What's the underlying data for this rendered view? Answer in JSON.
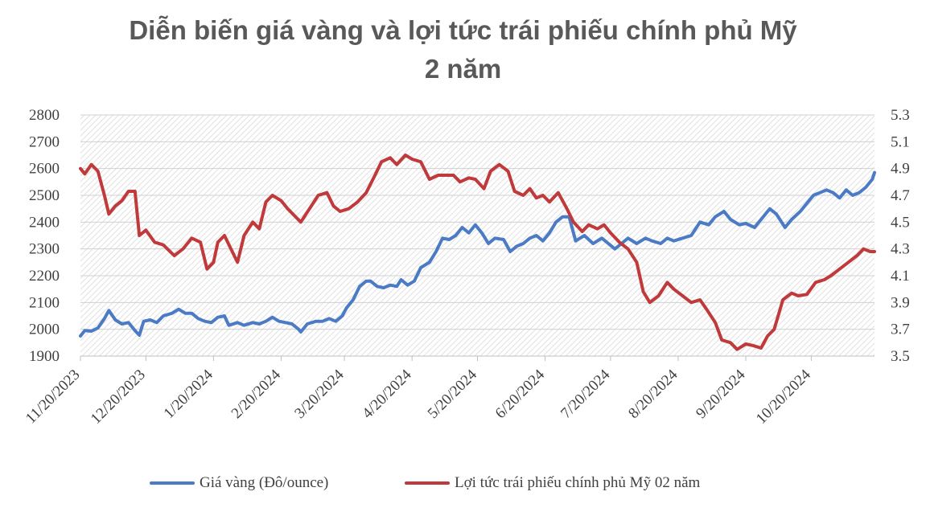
{
  "chart_data": {
    "type": "line",
    "title_line1": "Diễn biến giá vàng và lợi tức trái phiếu chính phủ Mỹ",
    "title_line2": "2 năm",
    "x_tick_labels": [
      "11/20/2023",
      "12/20/2023",
      "1/20/2024",
      "2/20/2024",
      "3/20/2024",
      "4/20/2024",
      "5/20/2024",
      "6/20/2024",
      "7/20/2024",
      "8/20/2024",
      "9/20/2024",
      "10/20/2024"
    ],
    "y_left": {
      "ticks": [
        1900,
        2000,
        2100,
        2200,
        2300,
        2400,
        2500,
        2600,
        2700,
        2800
      ],
      "range": [
        1900,
        2800
      ]
    },
    "y_right": {
      "ticks": [
        "3.5",
        "3.7",
        "3.9",
        "4.1",
        "4.3",
        "4.5",
        "4.7",
        "4.9",
        "5.1",
        "5.3"
      ],
      "range": [
        3.5,
        5.3
      ]
    },
    "x_range": [
      "2023-11-20",
      "2024-11-18"
    ],
    "grid": true,
    "legend_position": "bottom",
    "series": [
      {
        "name": "Giá vàng (Đô/ounce)",
        "axis": "left",
        "color": "#4a7bc4",
        "points": [
          [
            "2023-11-20",
            1975
          ],
          [
            "2023-11-22",
            1995
          ],
          [
            "2023-11-25",
            1993
          ],
          [
            "2023-11-28",
            2005
          ],
          [
            "2023-12-01",
            2040
          ],
          [
            "2023-12-03",
            2070
          ],
          [
            "2023-12-06",
            2035
          ],
          [
            "2023-12-09",
            2020
          ],
          [
            "2023-12-12",
            2025
          ],
          [
            "2023-12-15",
            1995
          ],
          [
            "2023-12-17",
            1978
          ],
          [
            "2023-12-19",
            2030
          ],
          [
            "2023-12-22",
            2035
          ],
          [
            "2023-12-25",
            2025
          ],
          [
            "2023-12-28",
            2050
          ],
          [
            "2024-01-01",
            2060
          ],
          [
            "2024-01-04",
            2075
          ],
          [
            "2024-01-07",
            2060
          ],
          [
            "2024-01-10",
            2060
          ],
          [
            "2024-01-13",
            2040
          ],
          [
            "2024-01-16",
            2030
          ],
          [
            "2024-01-19",
            2025
          ],
          [
            "2024-01-22",
            2045
          ],
          [
            "2024-01-25",
            2050
          ],
          [
            "2024-01-27",
            2015
          ],
          [
            "2024-01-31",
            2025
          ],
          [
            "2024-02-03",
            2015
          ],
          [
            "2024-02-07",
            2025
          ],
          [
            "2024-02-10",
            2020
          ],
          [
            "2024-02-13",
            2030
          ],
          [
            "2024-02-16",
            2045
          ],
          [
            "2024-02-19",
            2030
          ],
          [
            "2024-02-22",
            2025
          ],
          [
            "2024-02-25",
            2020
          ],
          [
            "2024-02-28",
            2000
          ],
          [
            "2024-02-29",
            1990
          ],
          [
            "2024-03-03",
            2020
          ],
          [
            "2024-03-07",
            2030
          ],
          [
            "2024-03-10",
            2030
          ],
          [
            "2024-03-13",
            2040
          ],
          [
            "2024-03-16",
            2030
          ],
          [
            "2024-03-19",
            2050
          ],
          [
            "2024-03-21",
            2080
          ],
          [
            "2024-03-24",
            2110
          ],
          [
            "2024-03-27",
            2160
          ],
          [
            "2024-03-30",
            2180
          ],
          [
            "2024-04-01",
            2180
          ],
          [
            "2024-04-04",
            2160
          ],
          [
            "2024-04-07",
            2155
          ],
          [
            "2024-04-10",
            2165
          ],
          [
            "2024-04-13",
            2160
          ],
          [
            "2024-04-15",
            2185
          ],
          [
            "2024-04-18",
            2165
          ],
          [
            "2024-04-21",
            2180
          ],
          [
            "2024-04-24",
            2230
          ],
          [
            "2024-04-28",
            2250
          ],
          [
            "2024-05-01",
            2290
          ],
          [
            "2024-05-04",
            2340
          ],
          [
            "2024-05-07",
            2335
          ],
          [
            "2024-05-10",
            2350
          ],
          [
            "2024-05-13",
            2380
          ],
          [
            "2024-05-16",
            2360
          ],
          [
            "2024-05-19",
            2390
          ],
          [
            "2024-05-22",
            2360
          ],
          [
            "2024-05-25",
            2320
          ],
          [
            "2024-05-28",
            2340
          ],
          [
            "2024-06-01",
            2335
          ],
          [
            "2024-06-04",
            2290
          ],
          [
            "2024-06-07",
            2310
          ],
          [
            "2024-06-10",
            2320
          ],
          [
            "2024-06-13",
            2340
          ],
          [
            "2024-06-16",
            2350
          ],
          [
            "2024-06-19",
            2330
          ],
          [
            "2024-06-22",
            2360
          ],
          [
            "2024-06-25",
            2400
          ],
          [
            "2024-06-28",
            2420
          ],
          [
            "2024-07-01",
            2420
          ],
          [
            "2024-07-04",
            2330
          ],
          [
            "2024-07-08",
            2350
          ],
          [
            "2024-07-12",
            2320
          ],
          [
            "2024-07-16",
            2340
          ],
          [
            "2024-07-19",
            2320
          ],
          [
            "2024-07-22",
            2300
          ],
          [
            "2024-07-25",
            2320
          ],
          [
            "2024-07-28",
            2340
          ],
          [
            "2024-08-01",
            2320
          ],
          [
            "2024-08-05",
            2340
          ],
          [
            "2024-08-08",
            2330
          ],
          [
            "2024-08-12",
            2320
          ],
          [
            "2024-08-15",
            2340
          ],
          [
            "2024-08-18",
            2330
          ],
          [
            "2024-08-22",
            2340
          ],
          [
            "2024-08-26",
            2350
          ],
          [
            "2024-08-30",
            2400
          ],
          [
            "2024-09-03",
            2390
          ],
          [
            "2024-09-06",
            2420
          ],
          [
            "2024-09-10",
            2440
          ],
          [
            "2024-09-13",
            2410
          ],
          [
            "2024-09-17",
            2390
          ],
          [
            "2024-09-20",
            2395
          ],
          [
            "2024-09-24",
            2380
          ],
          [
            "2024-09-27",
            2410
          ],
          [
            "2024-10-01",
            2450
          ],
          [
            "2024-10-04",
            2430
          ],
          [
            "2024-10-08",
            2380
          ],
          [
            "2024-10-11",
            2410
          ],
          [
            "2024-10-15",
            2440
          ],
          [
            "2024-10-18",
            2470
          ],
          [
            "2024-10-21",
            2500
          ],
          [
            "2024-10-24",
            2510
          ],
          [
            "2024-10-27",
            2520
          ],
          [
            "2024-10-30",
            2510
          ],
          [
            "2024-11-02",
            2490
          ],
          [
            "2024-11-05",
            2520
          ],
          [
            "2024-11-08",
            2500
          ],
          [
            "2024-11-11",
            2510
          ],
          [
            "2024-11-14",
            2530
          ],
          [
            "2024-11-17",
            2560
          ],
          [
            "2024-11-18",
            2585
          ]
        ]
      },
      {
        "name": "Lợi tức trái phiếu chính phủ Mỹ 02 năm",
        "axis": "right",
        "color": "#c0393b",
        "points": [
          [
            "2023-11-20",
            4.9
          ],
          [
            "2023-11-22",
            4.86
          ],
          [
            "2023-11-25",
            4.93
          ],
          [
            "2023-11-28",
            4.88
          ],
          [
            "2023-12-01",
            4.7
          ],
          [
            "2023-12-03",
            4.56
          ],
          [
            "2023-12-06",
            4.62
          ],
          [
            "2023-12-09",
            4.66
          ],
          [
            "2023-12-12",
            4.73
          ],
          [
            "2023-12-15",
            4.73
          ],
          [
            "2023-12-17",
            4.4
          ],
          [
            "2023-12-20",
            4.44
          ],
          [
            "2023-12-24",
            4.35
          ],
          [
            "2023-12-28",
            4.33
          ],
          [
            "2024-01-02",
            4.25
          ],
          [
            "2024-01-06",
            4.3
          ],
          [
            "2024-01-10",
            4.38
          ],
          [
            "2024-01-14",
            4.35
          ],
          [
            "2024-01-17",
            4.15
          ],
          [
            "2024-01-20",
            4.2
          ],
          [
            "2024-01-22",
            4.35
          ],
          [
            "2024-01-25",
            4.4
          ],
          [
            "2024-01-28",
            4.3
          ],
          [
            "2024-01-31",
            4.2
          ],
          [
            "2024-02-03",
            4.4
          ],
          [
            "2024-02-07",
            4.5
          ],
          [
            "2024-02-10",
            4.45
          ],
          [
            "2024-02-13",
            4.65
          ],
          [
            "2024-02-16",
            4.7
          ],
          [
            "2024-02-20",
            4.66
          ],
          [
            "2024-02-23",
            4.6
          ],
          [
            "2024-02-26",
            4.55
          ],
          [
            "2024-02-29",
            4.5
          ],
          [
            "2024-03-04",
            4.6
          ],
          [
            "2024-03-08",
            4.7
          ],
          [
            "2024-03-12",
            4.72
          ],
          [
            "2024-03-15",
            4.62
          ],
          [
            "2024-03-18",
            4.58
          ],
          [
            "2024-03-22",
            4.6
          ],
          [
            "2024-03-26",
            4.65
          ],
          [
            "2024-03-30",
            4.72
          ],
          [
            "2024-04-03",
            4.85
          ],
          [
            "2024-04-06",
            4.95
          ],
          [
            "2024-04-10",
            4.98
          ],
          [
            "2024-04-13",
            4.93
          ],
          [
            "2024-04-17",
            5.0
          ],
          [
            "2024-04-20",
            4.97
          ],
          [
            "2024-04-24",
            4.95
          ],
          [
            "2024-04-28",
            4.82
          ],
          [
            "2024-05-02",
            4.85
          ],
          [
            "2024-05-05",
            4.85
          ],
          [
            "2024-05-09",
            4.85
          ],
          [
            "2024-05-12",
            4.8
          ],
          [
            "2024-05-16",
            4.83
          ],
          [
            "2024-05-19",
            4.82
          ],
          [
            "2024-05-23",
            4.75
          ],
          [
            "2024-05-26",
            4.88
          ],
          [
            "2024-05-30",
            4.93
          ],
          [
            "2024-06-03",
            4.88
          ],
          [
            "2024-06-06",
            4.73
          ],
          [
            "2024-06-10",
            4.7
          ],
          [
            "2024-06-13",
            4.75
          ],
          [
            "2024-06-16",
            4.68
          ],
          [
            "2024-06-19",
            4.7
          ],
          [
            "2024-06-22",
            4.65
          ],
          [
            "2024-06-26",
            4.72
          ],
          [
            "2024-06-30",
            4.6
          ],
          [
            "2024-07-03",
            4.5
          ],
          [
            "2024-07-07",
            4.43
          ],
          [
            "2024-07-10",
            4.48
          ],
          [
            "2024-07-14",
            4.45
          ],
          [
            "2024-07-17",
            4.48
          ],
          [
            "2024-07-20",
            4.42
          ],
          [
            "2024-07-24",
            4.35
          ],
          [
            "2024-07-28",
            4.3
          ],
          [
            "2024-08-01",
            4.2
          ],
          [
            "2024-08-04",
            3.98
          ],
          [
            "2024-08-07",
            3.9
          ],
          [
            "2024-08-11",
            3.95
          ],
          [
            "2024-08-15",
            4.05
          ],
          [
            "2024-08-18",
            4.0
          ],
          [
            "2024-08-22",
            3.95
          ],
          [
            "2024-08-26",
            3.9
          ],
          [
            "2024-08-30",
            3.92
          ],
          [
            "2024-09-02",
            3.85
          ],
          [
            "2024-09-06",
            3.75
          ],
          [
            "2024-09-09",
            3.62
          ],
          [
            "2024-09-13",
            3.6
          ],
          [
            "2024-09-16",
            3.55
          ],
          [
            "2024-09-20",
            3.59
          ],
          [
            "2024-09-23",
            3.58
          ],
          [
            "2024-09-27",
            3.56
          ],
          [
            "2024-09-30",
            3.65
          ],
          [
            "2024-10-03",
            3.7
          ],
          [
            "2024-10-07",
            3.92
          ],
          [
            "2024-10-11",
            3.97
          ],
          [
            "2024-10-14",
            3.95
          ],
          [
            "2024-10-18",
            3.96
          ],
          [
            "2024-10-22",
            4.05
          ],
          [
            "2024-10-26",
            4.07
          ],
          [
            "2024-10-29",
            4.1
          ],
          [
            "2024-11-02",
            4.15
          ],
          [
            "2024-11-06",
            4.2
          ],
          [
            "2024-11-10",
            4.25
          ],
          [
            "2024-11-13",
            4.3
          ],
          [
            "2024-11-16",
            4.28
          ],
          [
            "2024-11-18",
            4.28
          ]
        ]
      }
    ]
  }
}
